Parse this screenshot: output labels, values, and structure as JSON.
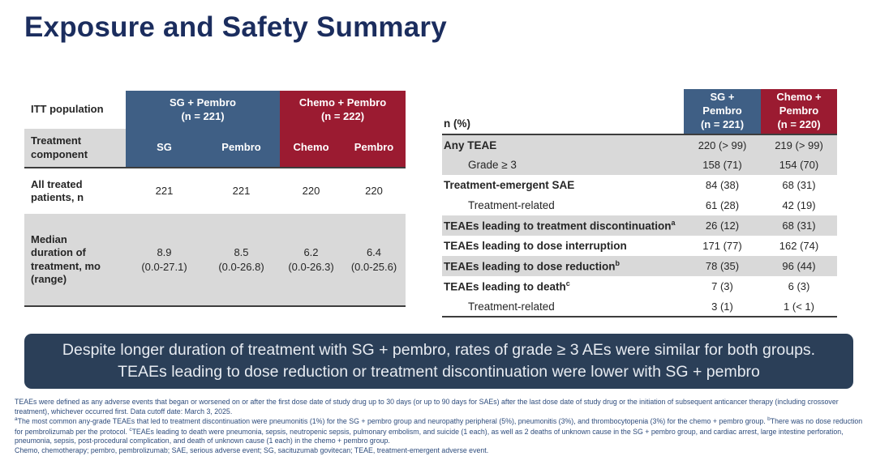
{
  "title": "Exposure and Safety Summary",
  "colors": {
    "title_navy": "#1b2d5e",
    "blue_header": "#3f5f85",
    "red_header": "#9b1b31",
    "shaded_row": "#d9d9d9",
    "summary_bg": "#2b3f58",
    "footnote_blue": "#2e4c7c"
  },
  "left_table": {
    "corner_label": "ITT population",
    "component_label": "Treatment\ncomponent",
    "group_headers": [
      "SG + Pembro\n(n = 221)",
      "Chemo + Pembro\n(n = 222)"
    ],
    "subheaders": [
      "SG",
      "Pembro",
      "Chemo",
      "Pembro"
    ],
    "rows": [
      {
        "label": "All treated\npatients, n",
        "values": [
          "221",
          "221",
          "220",
          "220"
        ]
      },
      {
        "label": "Median\nduration of\ntreatment, mo\n(range)",
        "values": [
          "8.9\n(0.0-27.1)",
          "8.5\n(0.0-26.8)",
          "6.2\n(0.0-26.3)",
          "6.4\n(0.0-25.6)"
        ]
      }
    ]
  },
  "right_table": {
    "corner_label": "n (%)",
    "col_headers": [
      "SG +\nPembro\n(n = 221)",
      "Chemo +\nPembro\n(n = 220)"
    ],
    "rows": [
      {
        "label": "Any TEAE",
        "sup": "",
        "indent": false,
        "shaded": true,
        "values": [
          "220 (> 99)",
          "219 (> 99)"
        ]
      },
      {
        "label": "Grade ≥ 3",
        "sup": "",
        "indent": true,
        "shaded": true,
        "values": [
          "158 (71)",
          "154 (70)"
        ]
      },
      {
        "label": "Treatment-emergent SAE",
        "sup": "",
        "indent": false,
        "shaded": false,
        "values": [
          "84 (38)",
          "68 (31)"
        ]
      },
      {
        "label": "Treatment-related",
        "sup": "",
        "indent": true,
        "shaded": false,
        "values": [
          "61 (28)",
          "42 (19)"
        ]
      },
      {
        "label": "TEAEs leading to treatment discontinuation",
        "sup": "a",
        "indent": false,
        "shaded": true,
        "values": [
          "26 (12)",
          "68 (31)"
        ]
      },
      {
        "label": "TEAEs leading to dose interruption",
        "sup": "",
        "indent": false,
        "shaded": false,
        "values": [
          "171 (77)",
          "162 (74)"
        ]
      },
      {
        "label": "TEAEs leading to dose reduction",
        "sup": "b",
        "indent": false,
        "shaded": true,
        "values": [
          "78 (35)",
          "96 (44)"
        ]
      },
      {
        "label": "TEAEs leading to death",
        "sup": "c",
        "indent": false,
        "shaded": false,
        "values": [
          "7 (3)",
          "6 (3)"
        ]
      },
      {
        "label": "Treatment-related",
        "sup": "",
        "indent": true,
        "shaded": false,
        "values": [
          "3 (1)",
          "1 (< 1)"
        ]
      }
    ]
  },
  "summary_box": {
    "text": "Despite longer duration of treatment with SG + pembro, rates of grade ≥ 3 AEs were similar for both groups. TEAEs leading to dose reduction or treatment discontinuation were lower with SG + pembro"
  },
  "footnotes": [
    "TEAEs were defined as any adverse events that began or worsened on or after the first dose date of study drug up to 30 days (or up to 90 days for SAEs) after the last dose date of study drug or the initiation of subsequent anticancer therapy (including crossover treatment), whichever occurred first. Data cutoff date: March 3, 2025.",
    "^a^The most common any-grade TEAEs that led to treatment discontinuation were pneumonitis (1%) for the SG + pembro group and neuropathy peripheral (5%), pneumonitis (3%), and thrombocytopenia (3%) for the chemo + pembro group. ^b^There was no dose reduction for pembrolizumab per the protocol. ^c^TEAEs leading to death were pneumonia, sepsis, neutropenic sepsis, pulmonary embolism, and suicide (1 each), as well as 2 deaths of unknown cause in the SG + pembro group, and cardiac arrest, large intestine perforation, pneumonia, sepsis, post-procedural complication, and death of unknown cause (1 each) in the chemo + pembro group.",
    "Chemo, chemotherapy; pembro, pembrolizumab; SAE, serious adverse event; SG, sacituzumab govitecan; TEAE, treatment-emergent adverse event."
  ]
}
